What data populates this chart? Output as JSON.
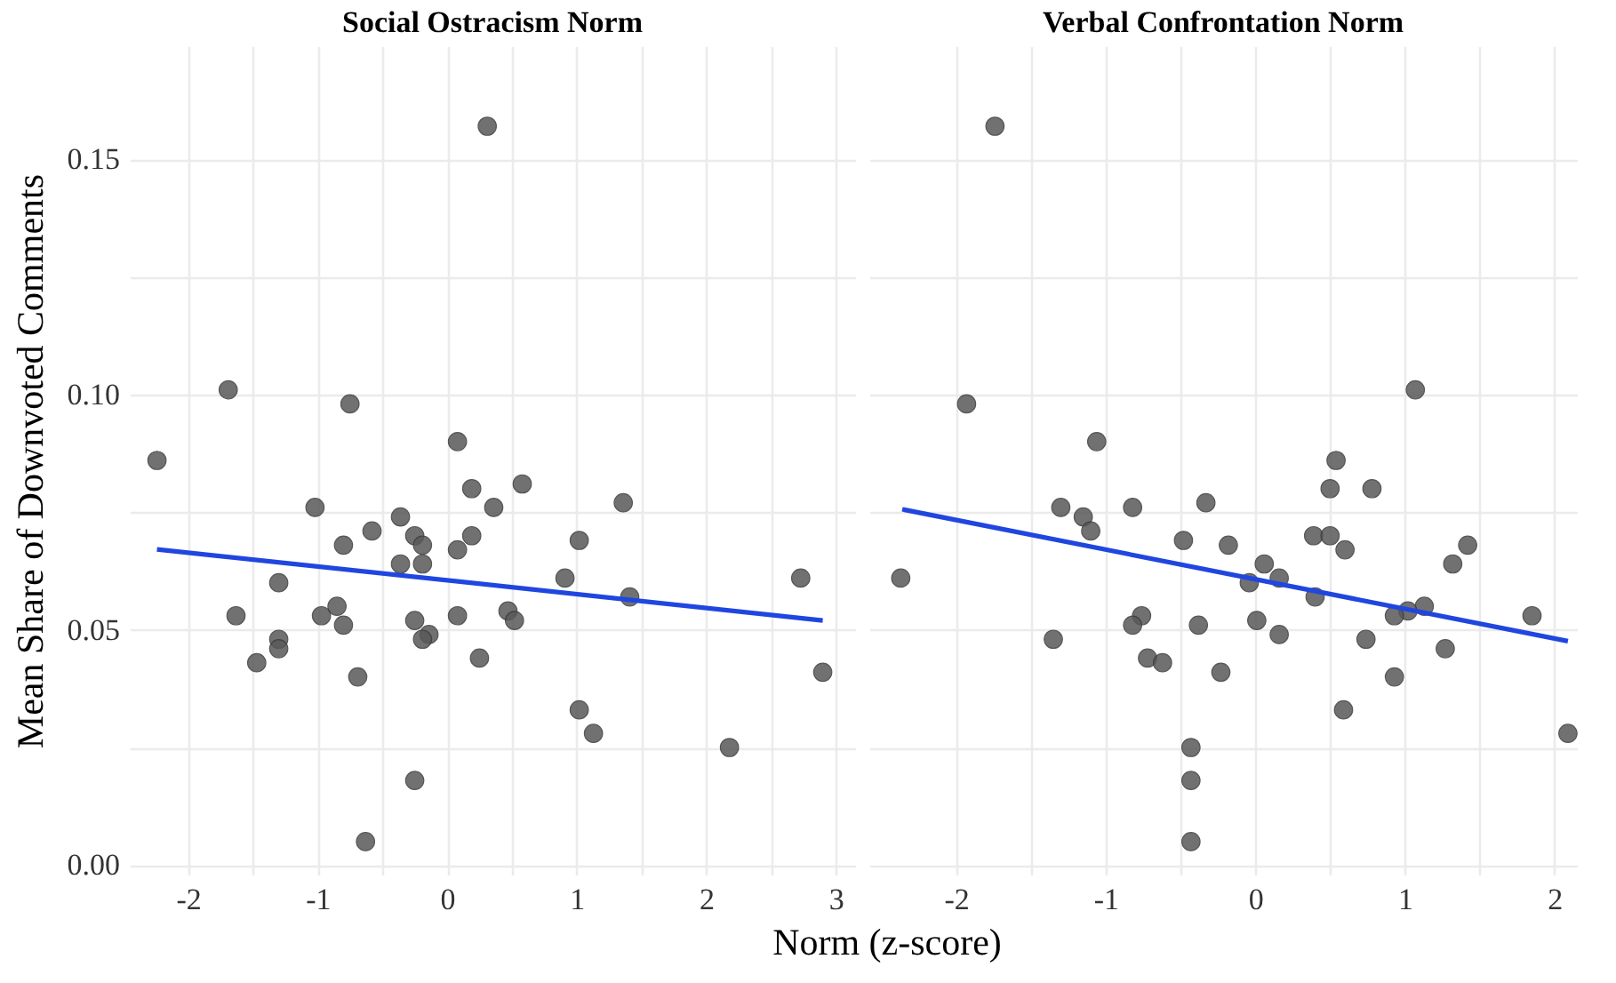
{
  "chart_data": [
    {
      "type": "scatter",
      "title": "Social Ostracism Norm",
      "xlabel": "Norm (z-score)",
      "ylabel": "Mean Share of Downvoted Comments",
      "grid": true,
      "xlim": [
        -2.45,
        3.15
      ],
      "xticks": [
        -2,
        {
          "value": -1.5,
          "label": null
        },
        -1,
        {
          "value": -0.5,
          "label": null
        },
        0,
        {
          "value": 0.5,
          "label": null
        },
        1,
        {
          "value": 1.5,
          "label": null
        },
        2,
        {
          "value": 2.5,
          "label": null
        },
        3
      ],
      "ylim": [
        -0.002,
        0.174
      ],
      "yticks": [
        {
          "value": 0,
          "label": "0.00"
        },
        {
          "value": 0.025,
          "label": null
        },
        {
          "value": 0.05,
          "label": "0.05"
        },
        {
          "value": 0.075,
          "label": null
        },
        {
          "value": 0.1,
          "label": "0.10"
        },
        {
          "value": 0.125,
          "label": null
        },
        {
          "value": 0.15,
          "label": "0.15"
        }
      ],
      "series": [
        {
          "marker": "circle",
          "color": "#595959",
          "x": [
            -1.69,
            -0.75,
            -2.24,
            0.08,
            0.19,
            0.58,
            0.36,
            1.36,
            -1.02,
            -0.36,
            -0.58,
            -0.25,
            -0.19,
            0.19,
            -0.8,
            0.08,
            1.02,
            -0.36,
            -0.19,
            0.91,
            1.41,
            -1.3,
            2.73,
            -1.63,
            -0.97,
            -0.85,
            -0.8,
            -0.25,
            0.08,
            0.47,
            0.52,
            -0.14,
            -0.19,
            -1.3,
            -1.3,
            -1.47,
            -0.69,
            0.25,
            2.9,
            1.02,
            1.13,
            2.18,
            -0.25,
            -0.63,
            0.31
          ],
          "values": [
            0.101,
            0.098,
            0.086,
            0.09,
            0.08,
            0.081,
            0.076,
            0.077,
            0.076,
            0.074,
            0.071,
            0.07,
            0.068,
            0.07,
            0.068,
            0.067,
            0.069,
            0.064,
            0.064,
            0.061,
            0.057,
            0.06,
            0.061,
            0.053,
            0.053,
            0.055,
            0.051,
            0.052,
            0.053,
            0.054,
            0.052,
            0.049,
            0.048,
            0.048,
            0.046,
            0.043,
            0.04,
            0.044,
            0.041,
            0.033,
            0.028,
            0.025,
            0.018,
            0.005,
            0.157
          ]
        },
        {
          "type": "line",
          "color": "#2046e0",
          "x": [
            -2.24,
            2.9
          ],
          "values": [
            0.0671,
            0.052
          ]
        }
      ]
    },
    {
      "type": "scatter",
      "title": "Verbal Confrontation Norm",
      "grid": true,
      "tick_labels": "x",
      "xlim": [
        -2.58,
        2.15
      ],
      "xticks": [
        -2,
        {
          "value": -1.5,
          "label": null
        },
        -1,
        {
          "value": -0.5,
          "label": null
        },
        0,
        {
          "value": 0.5,
          "label": null
        },
        1,
        {
          "value": 1.5,
          "label": null
        },
        2
      ],
      "ylim": [
        -0.002,
        0.174
      ],
      "yticks": [
        {
          "value": 0,
          "label": null
        },
        {
          "value": 0.025,
          "label": null
        },
        {
          "value": 0.05,
          "label": null
        },
        {
          "value": 0.075,
          "label": null
        },
        {
          "value": 0.1,
          "label": null
        },
        {
          "value": 0.125,
          "label": null
        },
        {
          "value": 0.15,
          "label": null
        }
      ],
      "series": [
        {
          "marker": "circle",
          "color": "#595959",
          "x": [
            1.07,
            -1.93,
            -1.06,
            0.54,
            0.5,
            0.78,
            -1.3,
            -1.15,
            -1.1,
            -0.82,
            -0.33,
            -0.48,
            -0.18,
            0.39,
            0.5,
            0.6,
            1.42,
            1.32,
            0.06,
            0.16,
            -0.04,
            0.4,
            -2.37,
            1.13,
            1.02,
            0.93,
            1.85,
            -0.76,
            -0.82,
            -0.38,
            0.01,
            0.16,
            0.74,
            -1.35,
            1.27,
            -0.72,
            -0.62,
            -0.23,
            0.93,
            0.59,
            2.09,
            -0.43,
            -0.43,
            -0.43,
            -1.74
          ],
          "values": [
            0.101,
            0.098,
            0.09,
            0.086,
            0.08,
            0.08,
            0.076,
            0.074,
            0.071,
            0.076,
            0.077,
            0.069,
            0.068,
            0.07,
            0.07,
            0.067,
            0.068,
            0.064,
            0.064,
            0.061,
            0.06,
            0.057,
            0.061,
            0.055,
            0.054,
            0.053,
            0.053,
            0.053,
            0.051,
            0.051,
            0.052,
            0.049,
            0.048,
            0.048,
            0.046,
            0.044,
            0.043,
            0.041,
            0.04,
            0.033,
            0.028,
            0.025,
            0.018,
            0.005,
            0.157
          ]
        },
        {
          "type": "line",
          "color": "#2046e0",
          "x": [
            -2.36,
            2.09
          ],
          "values": [
            0.0756,
            0.0476
          ]
        }
      ]
    }
  ]
}
